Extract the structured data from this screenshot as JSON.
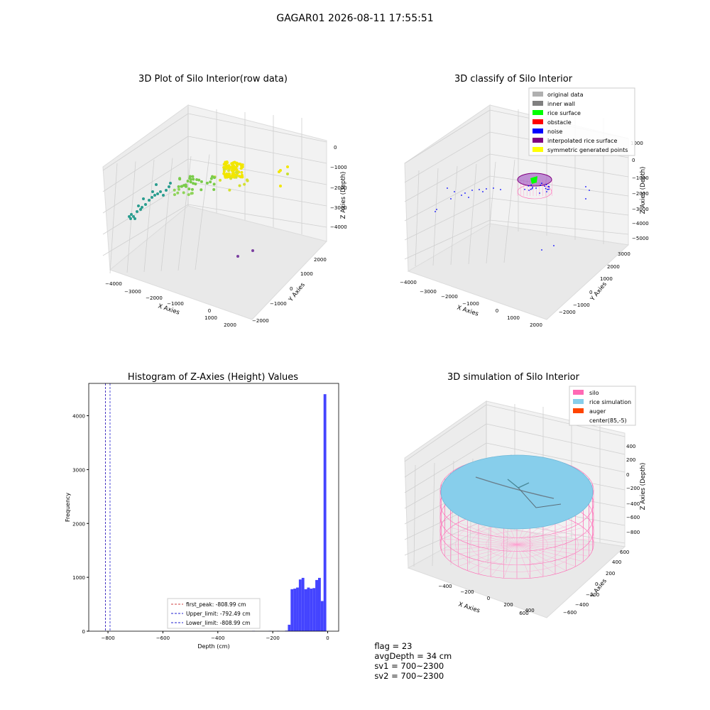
{
  "figure": {
    "suptitle": "GAGAR01 2026-08-11 17:55:51"
  },
  "colors": {
    "teal": "#2a9d8f",
    "green": "#7acc4a",
    "yellow": "#f2e600",
    "purple": "#7b3fa0",
    "hist": "#4444ff",
    "silo": "#ff69b4",
    "rice": "#87ceeb",
    "auger": "#ff4500"
  },
  "chart_data": [
    {
      "type": "scatter3d",
      "title": "3D Plot of Silo Interior(row data)",
      "xlabel": "X Axies",
      "ylabel": "Y Axies",
      "zlabel": "Z Axies (Depth)",
      "xticks": [
        "−4000",
        "−3000",
        "−2000",
        "−1000",
        "0",
        "1000",
        "2000"
      ],
      "yticks": [
        "2000",
        "1000",
        "0",
        "−1000",
        "−2000"
      ],
      "zticks": [
        "0",
        "−1000",
        "−2000",
        "−3000",
        "−4000"
      ],
      "xlim": [
        -4200,
        2400
      ],
      "ylim": [
        -2200,
        2400
      ],
      "zlim": [
        -4500,
        200
      ]
    },
    {
      "type": "scatter3d",
      "title": "3D classify of Silo Interior",
      "xlabel": "X Axies",
      "ylabel": "Y Axies",
      "zlabel": "Z Axies (Depth)",
      "xticks": [
        "−4000",
        "−3000",
        "−2000",
        "−1000",
        "0",
        "1000",
        "2000"
      ],
      "yticks": [
        "3000",
        "2000",
        "1000",
        "0",
        "−1000",
        "−2000"
      ],
      "zticks": [
        "1000",
        "0",
        "−1000",
        "−2000",
        "−3000",
        "−4000",
        "−5000"
      ],
      "legend": [
        {
          "label": "original data",
          "color": "#b0b0b0"
        },
        {
          "label": "inner wall",
          "color": "#808080"
        },
        {
          "label": "rice surface",
          "color": "#00ff00"
        },
        {
          "label": "obstacle",
          "color": "#ff0000"
        },
        {
          "label": "noise",
          "color": "#0000ff"
        },
        {
          "label": "interpolated rice surface",
          "color": "#800080"
        },
        {
          "label": "symmetric generated points",
          "color": "#ffff00"
        }
      ],
      "legend_loc": "upper right"
    },
    {
      "type": "bar",
      "title": "Histogram of Z-Axies (Height) Values",
      "xlabel": "Depth (cm)",
      "ylabel": "Frequency",
      "xlim": [
        -870,
        40
      ],
      "ylim": [
        0,
        4600
      ],
      "xticks": [
        "−800",
        "−600",
        "−400",
        "−200",
        "0"
      ],
      "yticks": [
        "0",
        "1000",
        "2000",
        "3000",
        "4000"
      ],
      "bin_width": 10,
      "bins": [
        {
          "x": -270,
          "y": 5
        },
        {
          "x": -210,
          "y": 5
        },
        {
          "x": -180,
          "y": 5
        },
        {
          "x": -150,
          "y": 10
        },
        {
          "x": -140,
          "y": 120
        },
        {
          "x": -130,
          "y": 780
        },
        {
          "x": -120,
          "y": 790
        },
        {
          "x": -110,
          "y": 810
        },
        {
          "x": -100,
          "y": 960
        },
        {
          "x": -90,
          "y": 990
        },
        {
          "x": -80,
          "y": 780
        },
        {
          "x": -70,
          "y": 810
        },
        {
          "x": -60,
          "y": 790
        },
        {
          "x": -50,
          "y": 800
        },
        {
          "x": -40,
          "y": 950
        },
        {
          "x": -30,
          "y": 990
        },
        {
          "x": -20,
          "y": 560
        },
        {
          "x": -10,
          "y": 4400
        }
      ],
      "vlines": [
        {
          "x": -808.99,
          "label": "first_peak: -808.99 cm",
          "color": "#d04040"
        },
        {
          "x": -792.49,
          "label": "Upper_limit: -792.49 cm",
          "color": "#2020d0"
        },
        {
          "x": -808.99,
          "label": "Lower_limit: -808.99 cm",
          "color": "#2020d0"
        }
      ],
      "legend_loc": "lower center"
    },
    {
      "type": "surface3d",
      "title": "3D simulation of Silo Interior",
      "xlabel": "X Axies",
      "ylabel": "Y Axies",
      "zlabel": "Z Axies (Depth)",
      "xticks": [
        "−400",
        "−200",
        "0",
        "200",
        "400",
        "600"
      ],
      "yticks": [
        "600",
        "400",
        "200",
        "0",
        "−200",
        "−400",
        "−600"
      ],
      "zticks": [
        "400",
        "200",
        "0",
        "−200",
        "−400",
        "−600",
        "−800"
      ],
      "legend": [
        {
          "label": "silo",
          "color": "#ff69b4"
        },
        {
          "label": "rice simulation",
          "color": "#87ceeb"
        },
        {
          "label": "auger",
          "color": "#ff4500"
        },
        {
          "label": "center(85,-5)",
          "color": ""
        }
      ],
      "legend_loc": "upper right"
    }
  ],
  "status": {
    "flag": "flag = 23",
    "avg": "avgDepth = 34 cm",
    "sv1": "sv1 = 700~2300",
    "sv2": "sv2 = 700~2300"
  }
}
